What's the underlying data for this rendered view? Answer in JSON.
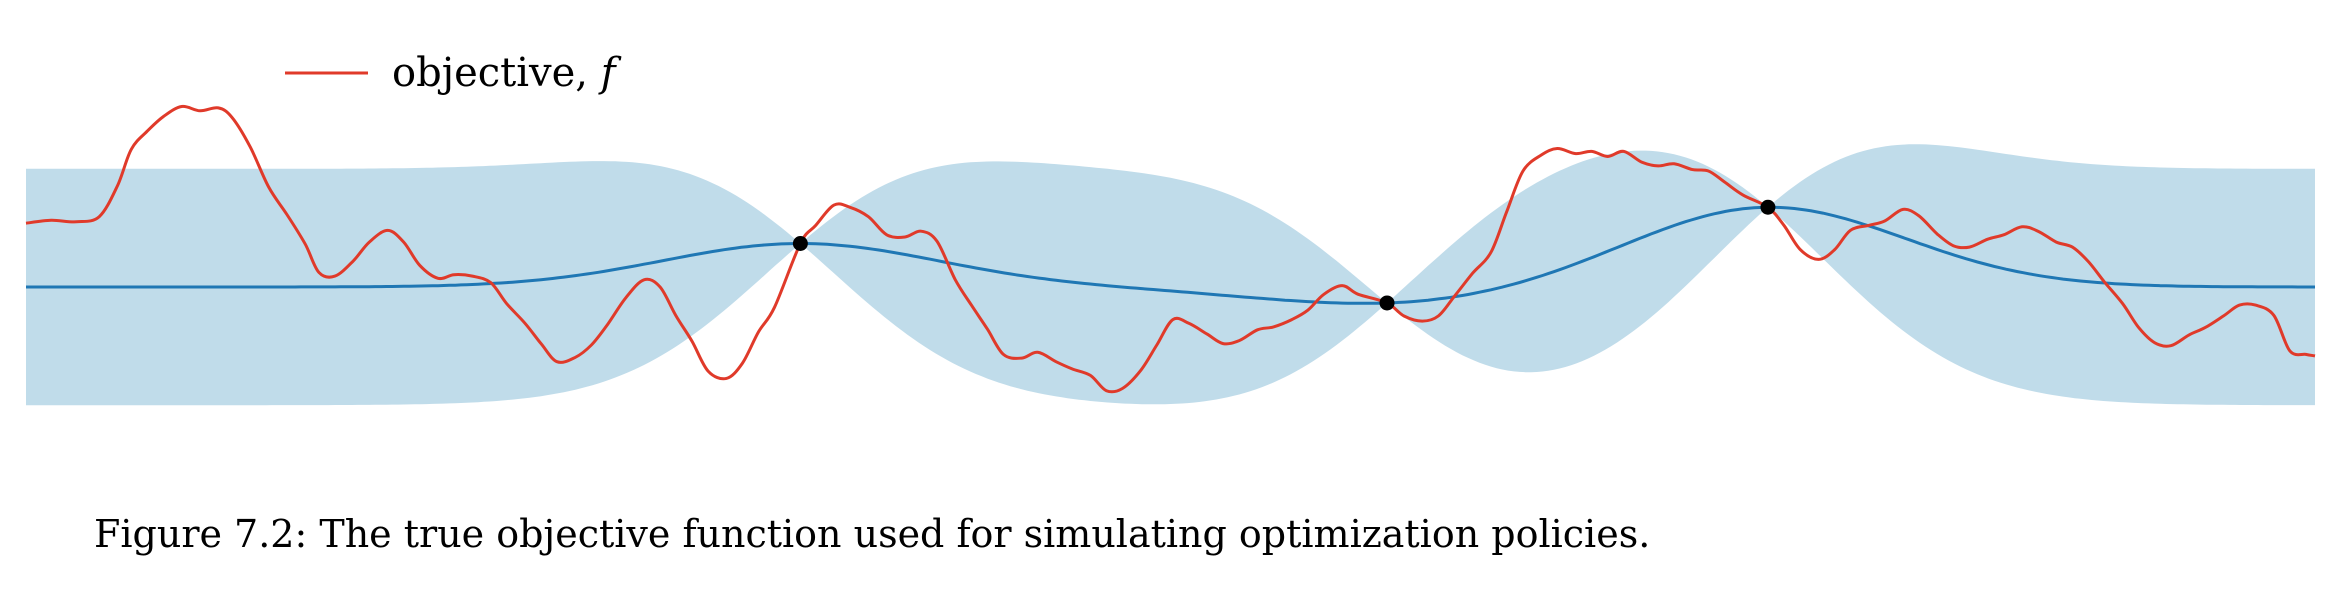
{
  "caption": "Figure 7.2: The true objective function used for simulating optimization policies.",
  "legend": {
    "label": "objective, ",
    "label_symbol": "f",
    "position": "top-left"
  },
  "colors": {
    "objective": "#e03a2a",
    "posterior_mean": "#1f77b4",
    "credible_band": "#c0dcea",
    "observations": "#000000"
  },
  "chart_data": {
    "type": "line",
    "title": "",
    "xlabel": "",
    "ylabel": "",
    "axes_visible": false,
    "grid": false,
    "xlim": [
      0,
      1
    ],
    "ylim": [
      -2.5,
      2.6
    ],
    "prior_mean": 0,
    "prior_band_halfwidth": 1.63,
    "observations": [
      {
        "x": 0.3383,
        "y": 0.6
      },
      {
        "x": 0.5946,
        "y": -0.22
      },
      {
        "x": 0.761,
        "y": 1.1
      }
    ],
    "series": [
      {
        "name": "objective, f",
        "values_xy": [
          [
            0.0,
            0.88
          ],
          [
            0.011,
            0.92
          ],
          [
            0.022,
            0.9
          ],
          [
            0.032,
            0.97
          ],
          [
            0.04,
            1.4
          ],
          [
            0.046,
            1.9
          ],
          [
            0.053,
            2.15
          ],
          [
            0.06,
            2.35
          ],
          [
            0.068,
            2.49
          ],
          [
            0.076,
            2.43
          ],
          [
            0.084,
            2.47
          ],
          [
            0.09,
            2.34
          ],
          [
            0.098,
            1.93
          ],
          [
            0.106,
            1.38
          ],
          [
            0.114,
            1.0
          ],
          [
            0.122,
            0.59
          ],
          [
            0.128,
            0.2
          ],
          [
            0.135,
            0.15
          ],
          [
            0.143,
            0.36
          ],
          [
            0.15,
            0.62
          ],
          [
            0.158,
            0.78
          ],
          [
            0.165,
            0.62
          ],
          [
            0.172,
            0.3
          ],
          [
            0.18,
            0.12
          ],
          [
            0.187,
            0.17
          ],
          [
            0.195,
            0.15
          ],
          [
            0.203,
            0.06
          ],
          [
            0.21,
            -0.23
          ],
          [
            0.218,
            -0.5
          ],
          [
            0.225,
            -0.78
          ],
          [
            0.232,
            -1.03
          ],
          [
            0.24,
            -0.97
          ],
          [
            0.247,
            -0.8
          ],
          [
            0.254,
            -0.52
          ],
          [
            0.262,
            -0.15
          ],
          [
            0.27,
            0.1
          ],
          [
            0.277,
            0.0
          ],
          [
            0.284,
            -0.4
          ],
          [
            0.291,
            -0.75
          ],
          [
            0.298,
            -1.16
          ],
          [
            0.306,
            -1.26
          ],
          [
            0.313,
            -1.05
          ],
          [
            0.32,
            -0.62
          ],
          [
            0.327,
            -0.28
          ],
          [
            0.3383,
            0.6
          ],
          [
            0.345,
            0.85
          ],
          [
            0.353,
            1.13
          ],
          [
            0.36,
            1.1
          ],
          [
            0.368,
            0.97
          ],
          [
            0.376,
            0.72
          ],
          [
            0.384,
            0.69
          ],
          [
            0.391,
            0.77
          ],
          [
            0.398,
            0.63
          ],
          [
            0.406,
            0.1
          ],
          [
            0.413,
            -0.25
          ],
          [
            0.42,
            -0.58
          ],
          [
            0.427,
            -0.93
          ],
          [
            0.435,
            -0.98
          ],
          [
            0.442,
            -0.9
          ],
          [
            0.45,
            -1.03
          ],
          [
            0.457,
            -1.13
          ],
          [
            0.465,
            -1.22
          ],
          [
            0.472,
            -1.43
          ],
          [
            0.479,
            -1.4
          ],
          [
            0.487,
            -1.15
          ],
          [
            0.494,
            -0.8
          ],
          [
            0.501,
            -0.45
          ],
          [
            0.508,
            -0.5
          ],
          [
            0.516,
            -0.65
          ],
          [
            0.523,
            -0.78
          ],
          [
            0.53,
            -0.74
          ],
          [
            0.538,
            -0.59
          ],
          [
            0.545,
            -0.55
          ],
          [
            0.553,
            -0.45
          ],
          [
            0.56,
            -0.32
          ],
          [
            0.567,
            -0.1
          ],
          [
            0.575,
            0.02
          ],
          [
            0.582,
            -0.1
          ],
          [
            0.5946,
            -0.22
          ],
          [
            0.602,
            -0.4
          ],
          [
            0.61,
            -0.47
          ],
          [
            0.617,
            -0.4
          ],
          [
            0.624,
            -0.13
          ],
          [
            0.632,
            0.19
          ],
          [
            0.64,
            0.48
          ],
          [
            0.647,
            1.05
          ],
          [
            0.654,
            1.6
          ],
          [
            0.662,
            1.82
          ],
          [
            0.669,
            1.91
          ],
          [
            0.677,
            1.84
          ],
          [
            0.684,
            1.87
          ],
          [
            0.691,
            1.8
          ],
          [
            0.698,
            1.87
          ],
          [
            0.706,
            1.72
          ],
          [
            0.713,
            1.67
          ],
          [
            0.72,
            1.7
          ],
          [
            0.728,
            1.62
          ],
          [
            0.735,
            1.6
          ],
          [
            0.742,
            1.45
          ],
          [
            0.75,
            1.27
          ],
          [
            0.761,
            1.1
          ],
          [
            0.768,
            0.85
          ],
          [
            0.775,
            0.52
          ],
          [
            0.783,
            0.38
          ],
          [
            0.79,
            0.51
          ],
          [
            0.797,
            0.78
          ],
          [
            0.805,
            0.85
          ],
          [
            0.812,
            0.91
          ],
          [
            0.82,
            1.07
          ],
          [
            0.827,
            0.98
          ],
          [
            0.835,
            0.73
          ],
          [
            0.842,
            0.57
          ],
          [
            0.849,
            0.55
          ],
          [
            0.857,
            0.66
          ],
          [
            0.864,
            0.72
          ],
          [
            0.872,
            0.83
          ],
          [
            0.879,
            0.77
          ],
          [
            0.887,
            0.62
          ],
          [
            0.894,
            0.55
          ],
          [
            0.901,
            0.35
          ],
          [
            0.908,
            0.07
          ],
          [
            0.916,
            -0.23
          ],
          [
            0.923,
            -0.56
          ],
          [
            0.93,
            -0.77
          ],
          [
            0.937,
            -0.81
          ],
          [
            0.945,
            -0.66
          ],
          [
            0.952,
            -0.56
          ],
          [
            0.96,
            -0.4
          ],
          [
            0.967,
            -0.25
          ],
          [
            0.974,
            -0.25
          ],
          [
            0.982,
            -0.39
          ],
          [
            0.989,
            -0.88
          ],
          [
            0.996,
            -0.93
          ],
          [
            1.0,
            -0.95
          ]
        ]
      }
    ]
  }
}
